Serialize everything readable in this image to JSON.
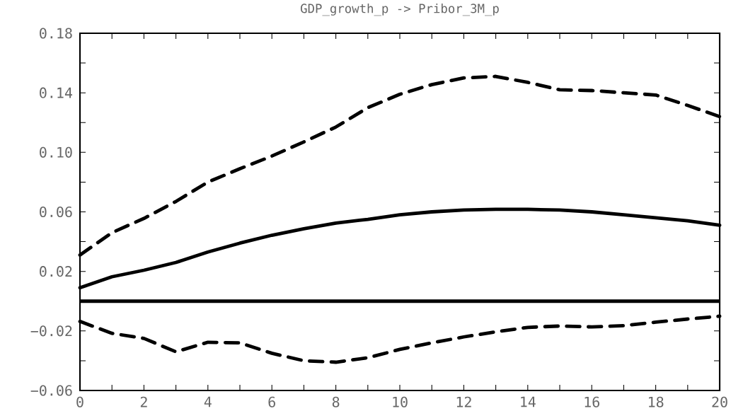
{
  "chart_data": {
    "type": "line",
    "title": "GDP_growth_p -> Pribor_3M_p",
    "x": [
      0,
      1,
      2,
      3,
      4,
      5,
      6,
      7,
      8,
      9,
      10,
      11,
      12,
      13,
      14,
      15,
      16,
      17,
      18,
      19,
      20
    ],
    "series": [
      {
        "color": "#000000",
        "line_style": "dashed",
        "values": [
          0.031,
          0.046,
          0.0556,
          0.067,
          0.08,
          0.089,
          0.0975,
          0.107,
          0.117,
          0.13,
          0.139,
          0.1455,
          0.15,
          0.151,
          0.147,
          0.142,
          0.1415,
          0.14,
          0.1385,
          0.1315,
          0.124
        ]
      },
      {
        "color": "#000000",
        "line_style": "solid",
        "values": [
          0.009,
          0.0164,
          0.0208,
          0.026,
          0.033,
          0.039,
          0.0443,
          0.0487,
          0.0525,
          0.055,
          0.058,
          0.06,
          0.0612,
          0.0617,
          0.0617,
          0.0612,
          0.06,
          0.058,
          0.056,
          0.054,
          0.051
        ]
      },
      {
        "color": "#000000",
        "line_style": "dashed",
        "values": [
          -0.0136,
          -0.0216,
          -0.025,
          -0.034,
          -0.0276,
          -0.028,
          -0.035,
          -0.04,
          -0.041,
          -0.038,
          -0.0324,
          -0.028,
          -0.024,
          -0.0206,
          -0.0176,
          -0.0167,
          -0.0173,
          -0.0164,
          -0.0141,
          -0.012,
          -0.0101
        ]
      }
    ],
    "ref_lines": [
      {
        "axis": "y",
        "value": 0,
        "color": "#000000",
        "line_style": "solid"
      }
    ],
    "xlim": [
      0,
      20
    ],
    "xticks": [
      0,
      {
        "value": 1,
        "label": null
      },
      2,
      {
        "value": 3,
        "label": null
      },
      4,
      {
        "value": 5,
        "label": null
      },
      6,
      {
        "value": 7,
        "label": null
      },
      8,
      {
        "value": 9,
        "label": null
      },
      10,
      {
        "value": 11,
        "label": null
      },
      12,
      {
        "value": 13,
        "label": null
      },
      14,
      {
        "value": 15,
        "label": null
      },
      16,
      {
        "value": 17,
        "label": null
      },
      18,
      {
        "value": 19,
        "label": null
      },
      20
    ],
    "ylim": [
      -0.06,
      0.18
    ],
    "yticks": [
      {
        "value": -0.06,
        "label": "−0.06"
      },
      {
        "value": -0.04,
        "label": null
      },
      {
        "value": -0.02,
        "label": "−0.02"
      },
      {
        "value": 0,
        "label": null
      },
      {
        "value": 0.02,
        "label": "0.02"
      },
      {
        "value": 0.04,
        "label": null
      },
      {
        "value": 0.06,
        "label": "0.06"
      },
      {
        "value": 0.08,
        "label": null
      },
      {
        "value": 0.1,
        "label": "0.10"
      },
      {
        "value": 0.12,
        "label": null
      },
      {
        "value": 0.14,
        "label": "0.14"
      },
      {
        "value": 0.16,
        "label": null
      },
      {
        "value": 0.18,
        "label": "0.18"
      }
    ]
  }
}
